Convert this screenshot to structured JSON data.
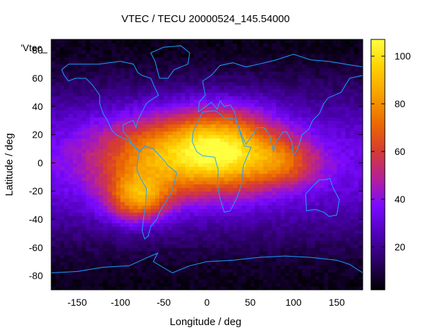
{
  "chart_data": {
    "type": "heatmap",
    "title": "VTEC / TECU 20000524_145.54000",
    "xlabel": "Longitude / deg",
    "ylabel": "Latitude / deg",
    "key_label": "'Vtec_",
    "xlim": [
      -180,
      180
    ],
    "ylim": [
      -90,
      87.5
    ],
    "xticks": [
      -150,
      -100,
      -50,
      0,
      50,
      100,
      150
    ],
    "yticks": [
      -80,
      -60,
      -40,
      -20,
      0,
      20,
      40,
      60,
      80
    ],
    "cbrange": [
      2,
      107
    ],
    "cbticks": [
      20,
      40,
      60,
      80,
      100
    ],
    "grid": false,
    "colorbar": "right",
    "palette": [
      "#000000",
      "#2a0062",
      "#4f00b8",
      "#7a0aff",
      "#b5209a",
      "#d63c30",
      "#ec6b00",
      "#f7a000",
      "#ffd000",
      "#ffff40"
    ],
    "coastline_color": "#1aa3ff",
    "features": [
      {
        "lon": -60,
        "lat": 5,
        "tec": 75,
        "sx": 55,
        "sy": 20
      },
      {
        "lon": 20,
        "lat": 10,
        "tec": 95,
        "sx": 45,
        "sy": 20
      },
      {
        "lon": -80,
        "lat": -25,
        "tec": 80,
        "sx": 25,
        "sy": 12
      },
      {
        "lon": 90,
        "lat": 0,
        "tec": 60,
        "sx": 30,
        "sy": 12
      }
    ],
    "background_tec": {
      "equatorial": 33,
      "polar": 5
    }
  }
}
